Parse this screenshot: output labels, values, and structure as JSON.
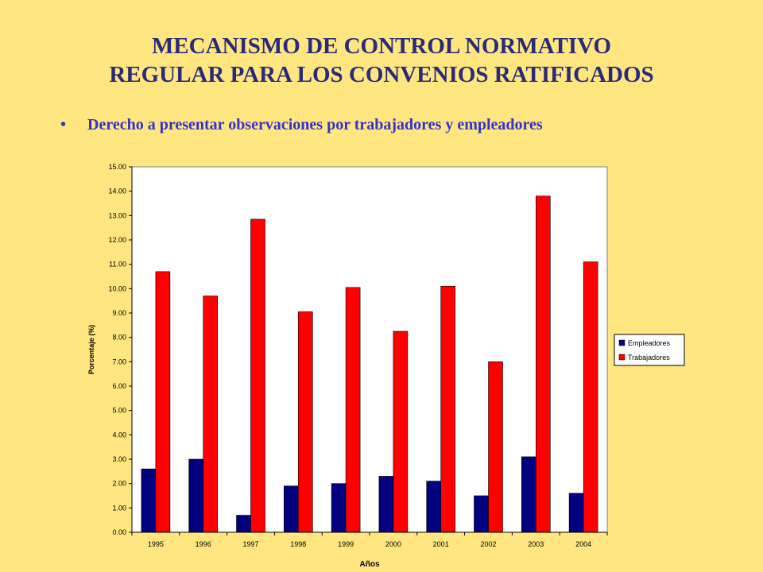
{
  "slide": {
    "title_line1": "MECANISMO DE CONTROL NORMATIVO",
    "title_line2": "REGULAR PARA LOS CONVENIOS RATIFICADOS",
    "bullet_text": "Derecho a presentar observaciones por trabajadores y empleadores"
  },
  "chart_data": {
    "type": "bar",
    "categories": [
      "1995",
      "1996",
      "1997",
      "1998",
      "1999",
      "2000",
      "2001",
      "2002",
      "2003",
      "2004"
    ],
    "series": [
      {
        "name": "Empleadores",
        "color": "#000080",
        "values": [
          2.6,
          3.0,
          0.7,
          1.9,
          2.0,
          2.3,
          2.1,
          1.5,
          3.1,
          1.6
        ]
      },
      {
        "name": "Trabajadores",
        "color": "#FF0000",
        "values": [
          10.7,
          9.7,
          12.85,
          9.05,
          10.05,
          8.25,
          10.1,
          7.0,
          13.8,
          11.1
        ]
      }
    ],
    "xlabel": "Años",
    "ylabel": "Porcentaje (%)",
    "ylim": [
      0,
      15
    ],
    "ytick_step": 1,
    "ytick_decimals": 2,
    "legend_position": "right",
    "grid": false
  }
}
